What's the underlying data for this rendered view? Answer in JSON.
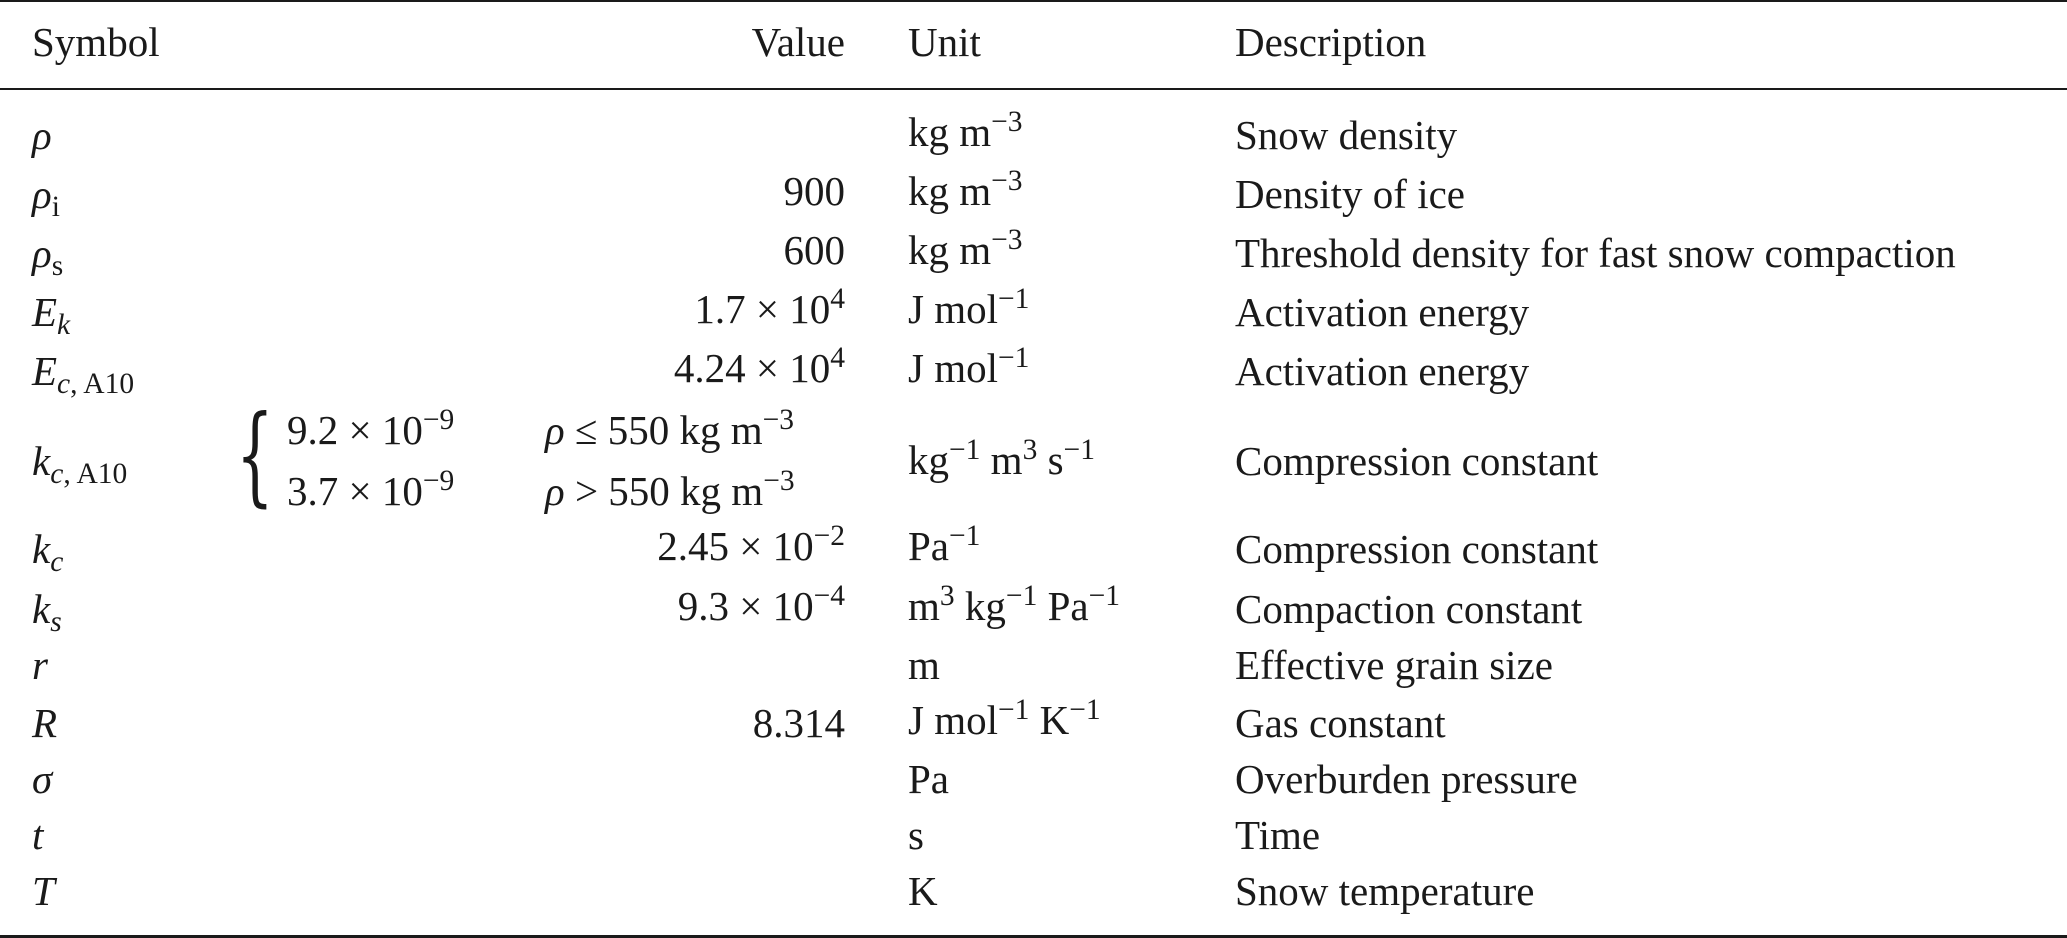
{
  "headers": {
    "symbol": "Symbol",
    "value": "Value",
    "unit": "Unit",
    "description": "Description"
  },
  "rows": [
    {
      "symbol": "ρ",
      "unit_main": "kg m",
      "unit_sup": "−3",
      "description": "Snow density"
    },
    {
      "symbol": "ρ",
      "symbol_sub": "i",
      "value": "900",
      "unit_main": "kg m",
      "unit_sup": "−3",
      "description": "Density of ice"
    },
    {
      "symbol": "ρ",
      "symbol_sub": "s",
      "value": "600",
      "unit_main": "kg m",
      "unit_sup": "−3",
      "description": "Threshold density for fast snow compaction"
    },
    {
      "symbol": "E",
      "symbol_sub": "k",
      "value_mant": "1.7 × 10",
      "value_exp": "4",
      "unit_main": "J mol",
      "unit_sup": "−1",
      "description": "Activation energy"
    },
    {
      "symbol": "E",
      "symbol_sub": "c",
      "symbol_sub2": ", A10",
      "value_mant": "4.24 × 10",
      "value_exp": "4",
      "unit_main": "J mol",
      "unit_sup": "−1",
      "description": "Activation energy"
    },
    {
      "symbol": "k",
      "symbol_sub": "c",
      "symbol_sub2": ", A10",
      "piecewise": [
        {
          "mant": "9.2 × 10",
          "exp": "−9",
          "cond_var": "ρ",
          "cond": " ≤ 550 kg m",
          "cond_sup": "−3"
        },
        {
          "mant": "3.7 × 10",
          "exp": "−9",
          "cond_var": "ρ",
          "cond": " > 550 kg m",
          "cond_sup": "−3"
        }
      ],
      "unit_parts": [
        "kg",
        "−1",
        " m",
        "3",
        " s",
        "−1"
      ],
      "description": "Compression constant"
    },
    {
      "symbol": "k",
      "symbol_sub": "c",
      "value_mant": "2.45 × 10",
      "value_exp": "−2",
      "unit_main": "Pa",
      "unit_sup": "−1",
      "description": "Compression constant"
    },
    {
      "symbol": "k",
      "symbol_sub": "s",
      "value_mant": "9.3 × 10",
      "value_exp": "−4",
      "unit_parts": [
        "m",
        "3",
        " kg",
        "−1",
        " Pa",
        "−1"
      ],
      "description": "Compaction constant"
    },
    {
      "symbol": "r",
      "unit_main": "m",
      "description": "Effective grain size"
    },
    {
      "symbol": "R",
      "value": "8.314",
      "unit_parts": [
        "J mol",
        "−1",
        " K",
        "−1"
      ],
      "description": "Gas constant"
    },
    {
      "symbol": "σ",
      "unit_main": "Pa",
      "description": "Overburden pressure"
    },
    {
      "symbol": "t",
      "unit_main": "s",
      "description": "Time"
    },
    {
      "symbol": "T",
      "unit_main": "K",
      "description": "Snow temperature"
    }
  ]
}
